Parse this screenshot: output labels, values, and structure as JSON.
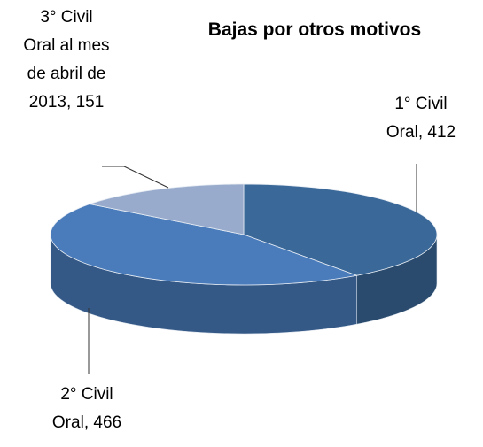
{
  "chart_data": {
    "type": "pie",
    "title": "Bajas por otros motivos",
    "categories": [
      "1° Civil Oral",
      "2° Civil Oral",
      "3° Civil Oral al mes de abril de 2013"
    ],
    "values": [
      412,
      466,
      151
    ],
    "colors": [
      "#3a6898",
      "#4a7cbc",
      "#98abcc"
    ]
  }
}
